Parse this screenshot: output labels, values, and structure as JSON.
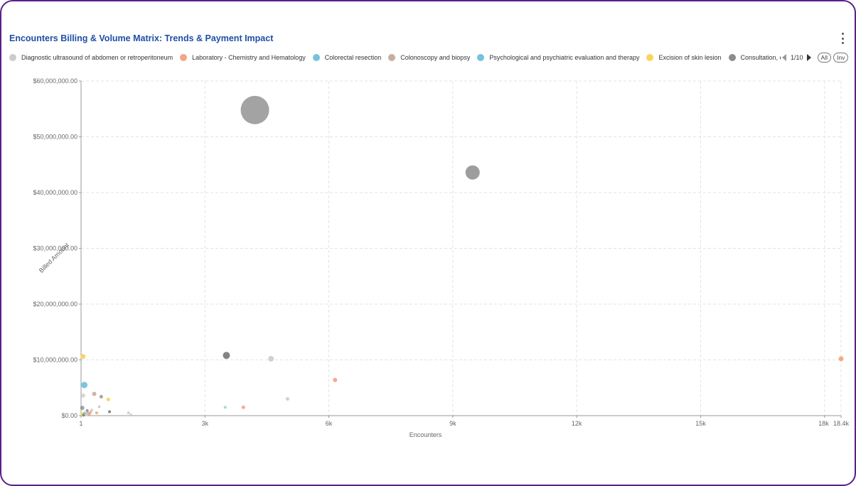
{
  "header": {
    "title": "Encounters Billing & Volume Matrix: Trends & Payment Impact"
  },
  "legend": {
    "items": [
      {
        "label": "Diagnostic ultrasound of abdomen or retroperitoneum",
        "color": "#cccccc"
      },
      {
        "label": "Laboratory - Chemistry and Hematology",
        "color": "#f4a582"
      },
      {
        "label": "Colorectal resection",
        "color": "#74c3dc"
      },
      {
        "label": "Colonoscopy and biopsy",
        "color": "#c6aea0"
      },
      {
        "label": "Psychological and psychiatric evaluation and therapy",
        "color": "#74c3dc"
      },
      {
        "label": "Excision of skin lesion",
        "color": "#f6d55c"
      },
      {
        "label": "Consultation, evaluation, and preventative care",
        "color": "#8c8c8c"
      }
    ],
    "page": "1/10",
    "all_label": "All",
    "inv_label": "Inv"
  },
  "chart_data": {
    "type": "scatter",
    "title": "Encounters Billing & Volume Matrix: Trends & Payment Impact",
    "xlabel": "Encounters",
    "ylabel": "Billed Amount",
    "xlim": [
      1,
      18400
    ],
    "ylim": [
      0,
      60000000
    ],
    "x_ticks": [
      {
        "value": 1,
        "label": "1"
      },
      {
        "value": 3000,
        "label": "3k"
      },
      {
        "value": 6000,
        "label": "6k"
      },
      {
        "value": 9000,
        "label": "9k"
      },
      {
        "value": 12000,
        "label": "12k"
      },
      {
        "value": 15000,
        "label": "15k"
      },
      {
        "value": 18000,
        "label": "18k"
      },
      {
        "value": 18400,
        "label": "18.4k"
      }
    ],
    "y_ticks": [
      {
        "value": 0,
        "label": "$0.00"
      },
      {
        "value": 10000000,
        "label": "$10,000,000.00"
      },
      {
        "value": 20000000,
        "label": "$20,000,000.00"
      },
      {
        "value": 30000000,
        "label": "$30,000,000.00"
      },
      {
        "value": 40000000,
        "label": "$40,000,000.00"
      },
      {
        "value": 50000000,
        "label": "$50,000,000.00"
      },
      {
        "value": 60000000,
        "label": "$60,000,000.00"
      }
    ],
    "grid": true,
    "legend_position": "top",
    "points": [
      {
        "x": 4210,
        "y": 54800000,
        "size": 20,
        "color": "#8c8c8c",
        "opacity": 0.8
      },
      {
        "x": 9480,
        "y": 43600000,
        "size": 10,
        "color": "#8c8c8c",
        "opacity": 0.85
      },
      {
        "x": 3520,
        "y": 10800000,
        "size": 5,
        "color": "#777777",
        "opacity": 0.9
      },
      {
        "x": 4600,
        "y": 10200000,
        "size": 4,
        "color": "#cccccc",
        "opacity": 0.9
      },
      {
        "x": 18400,
        "y": 10200000,
        "size": 3.5,
        "color": "#f4a582",
        "opacity": 0.95
      },
      {
        "x": 6150,
        "y": 6400000,
        "size": 3,
        "color": "#f4a582",
        "opacity": 0.95
      },
      {
        "x": 50,
        "y": 10600000,
        "size": 3.5,
        "color": "#f6d55c",
        "opacity": 0.95
      },
      {
        "x": 80,
        "y": 5500000,
        "size": 4.5,
        "color": "#74c3dc",
        "opacity": 0.95
      },
      {
        "x": 50,
        "y": 3600000,
        "size": 3,
        "color": "#cccccc",
        "opacity": 0.8
      },
      {
        "x": 320,
        "y": 3900000,
        "size": 3,
        "color": "#c6aea0",
        "opacity": 0.9
      },
      {
        "x": 490,
        "y": 3400000,
        "size": 2.5,
        "color": "#a89a90",
        "opacity": 0.9
      },
      {
        "x": 660,
        "y": 2900000,
        "size": 2.5,
        "color": "#f6d55c",
        "opacity": 0.95
      },
      {
        "x": 5000,
        "y": 3000000,
        "size": 2.5,
        "color": "#cccccc",
        "opacity": 0.9
      },
      {
        "x": 3930,
        "y": 1500000,
        "size": 2.5,
        "color": "#f4a582",
        "opacity": 0.95
      },
      {
        "x": 3490,
        "y": 1500000,
        "size": 2,
        "color": "#9fd0e0",
        "opacity": 0.9
      },
      {
        "x": 30,
        "y": 1400000,
        "size": 3,
        "color": "#8c8c8c",
        "opacity": 0.8
      },
      {
        "x": 440,
        "y": 1600000,
        "size": 2,
        "color": "#cccccc",
        "opacity": 0.9
      },
      {
        "x": 690,
        "y": 700000,
        "size": 2,
        "color": "#777777",
        "opacity": 0.9
      },
      {
        "x": 230,
        "y": 600000,
        "size": 2,
        "color": "#f4a582",
        "opacity": 0.9
      },
      {
        "x": 380,
        "y": 500000,
        "size": 2,
        "color": "#f4a582",
        "opacity": 0.9
      },
      {
        "x": 150,
        "y": 900000,
        "size": 2,
        "color": "#8c8c8c",
        "opacity": 0.9
      },
      {
        "x": 90,
        "y": 400000,
        "size": 2.5,
        "color": "#74c3dc",
        "opacity": 0.9
      },
      {
        "x": 20,
        "y": 300000,
        "size": 2.5,
        "color": "#f6d55c",
        "opacity": 0.9
      },
      {
        "x": 200,
        "y": 250000,
        "size": 2,
        "color": "#c6aea0",
        "opacity": 0.9
      },
      {
        "x": 120,
        "y": 150000,
        "size": 2,
        "color": "#cccccc",
        "opacity": 0.9
      },
      {
        "x": 260,
        "y": 1000000,
        "size": 2,
        "color": "#cccccc",
        "opacity": 0.9
      },
      {
        "x": 1150,
        "y": 500000,
        "size": 2,
        "color": "#cccccc",
        "opacity": 0.9
      },
      {
        "x": 1210,
        "y": 200000,
        "size": 1.5,
        "color": "#cccccc",
        "opacity": 0.9
      },
      {
        "x": 60,
        "y": 100000,
        "size": 2,
        "color": "#777777",
        "opacity": 0.8
      },
      {
        "x": 170,
        "y": 450000,
        "size": 2,
        "color": "#f4a582",
        "opacity": 0.9
      }
    ]
  }
}
